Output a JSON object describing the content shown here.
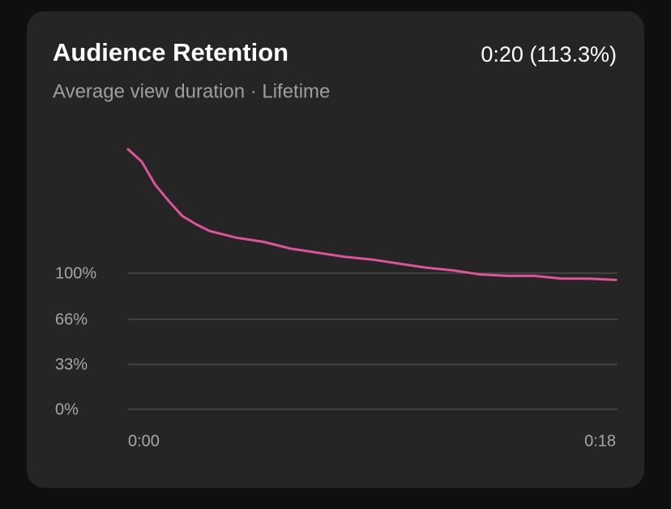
{
  "chart_data": {
    "type": "line",
    "title": "Audience Retention",
    "subtitle": "Average view duration · Lifetime",
    "summary": "0:20 (113.3%)",
    "x": [
      0,
      0.5,
      1,
      1.5,
      2,
      2.5,
      3,
      4,
      5,
      6,
      7,
      8,
      9,
      10,
      11,
      12,
      13,
      14,
      15,
      16,
      17,
      18
    ],
    "series": [
      {
        "color": "#e0529c",
        "values": [
          191,
          182,
          165,
          153,
          142,
          136,
          131,
          126,
          123,
          118,
          115,
          112,
          110,
          107,
          104,
          102,
          99,
          98,
          98,
          96,
          96,
          95
        ]
      }
    ],
    "xlim": [
      0,
      18
    ],
    "xticks": [
      {
        "value": 0,
        "label": "0:00"
      },
      {
        "value": 18,
        "label": "0:18"
      }
    ],
    "ylim": [
      0,
      192
    ],
    "yticks": [
      {
        "value": 0,
        "label": "0%"
      },
      {
        "value": 33,
        "label": "33%"
      },
      {
        "value": 66,
        "label": "66%"
      },
      {
        "value": 100,
        "label": "100%"
      }
    ],
    "grid": true
  }
}
